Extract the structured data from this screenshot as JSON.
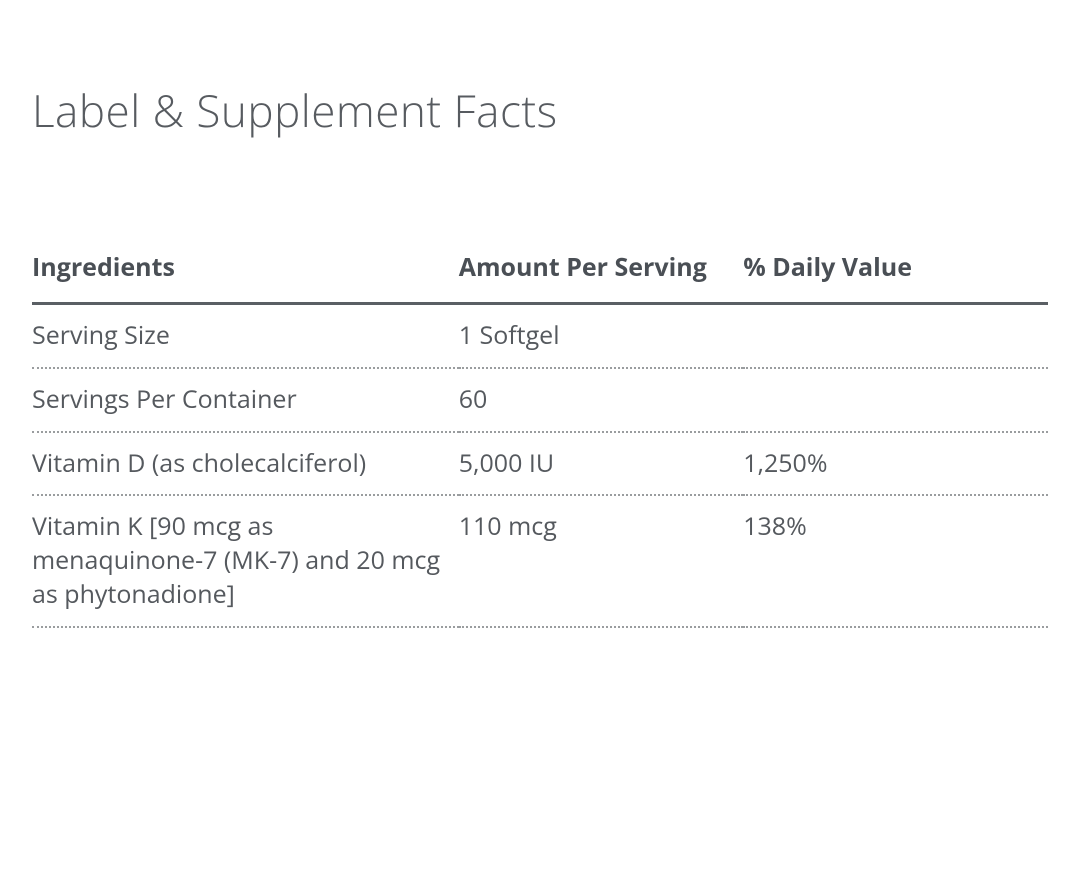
{
  "title": "Label & Supplement Facts",
  "table": {
    "type": "table",
    "background_color": "#ffffff",
    "text_color": "#4a4f55",
    "header_border_color": "#5a5f64",
    "row_border_style": "dotted",
    "row_border_color": "#9a9d9f",
    "title_fontsize_pt": 33,
    "header_fontsize_pt": 19,
    "cell_fontsize_pt": 19,
    "font_family": "Open Sans / sans-serif",
    "column_widths_pct": [
      42,
      28,
      30
    ],
    "columns": [
      "Ingredients",
      "Amount Per Serving",
      "% Daily Value"
    ],
    "rows": [
      {
        "ingredient": "Serving Size",
        "amount": "1 Softgel",
        "dv": ""
      },
      {
        "ingredient": "Servings Per Container",
        "amount": "60",
        "dv": ""
      },
      {
        "ingredient": "Vitamin D (as cholecalciferol)",
        "amount": "5,000 IU",
        "dv": "1,250%"
      },
      {
        "ingredient": "Vitamin K [90 mcg as menaquinone-7 (MK-7) and 20 mcg as phytonadione]",
        "amount": "110 mcg",
        "dv": "138%"
      }
    ]
  }
}
